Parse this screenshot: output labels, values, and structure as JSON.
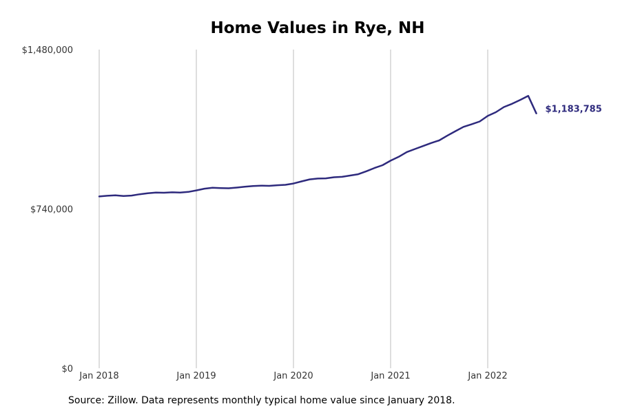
{
  "chart_data": {
    "type": "line",
    "title": "Home Values in Rye, NH",
    "xlabel": "",
    "ylabel": "",
    "ylim": [
      0,
      1480000
    ],
    "xlim": [
      "2018-01",
      "2022-11"
    ],
    "y_ticks": [
      {
        "value": 0,
        "label": "$0"
      },
      {
        "value": 740000,
        "label": "$740,000"
      },
      {
        "value": 1480000,
        "label": "$1,480,000"
      }
    ],
    "x_ticks": [
      {
        "value": "2018-01",
        "label": "Jan 2018"
      },
      {
        "value": "2019-01",
        "label": "Jan 2019"
      },
      {
        "value": "2020-01",
        "label": "Jan 2020"
      },
      {
        "value": "2021-01",
        "label": "Jan 2021"
      },
      {
        "value": "2022-01",
        "label": "Jan 2022"
      }
    ],
    "grid": "vertical at x ticks",
    "legend": "none",
    "line_color": "#2e2a7d",
    "x": [
      "2018-01",
      "2018-02",
      "2018-03",
      "2018-04",
      "2018-05",
      "2018-06",
      "2018-07",
      "2018-08",
      "2018-09",
      "2018-10",
      "2018-11",
      "2018-12",
      "2019-01",
      "2019-02",
      "2019-03",
      "2019-04",
      "2019-05",
      "2019-06",
      "2019-07",
      "2019-08",
      "2019-09",
      "2019-10",
      "2019-11",
      "2019-12",
      "2020-01",
      "2020-02",
      "2020-03",
      "2020-04",
      "2020-05",
      "2020-06",
      "2020-07",
      "2020-08",
      "2020-09",
      "2020-10",
      "2020-11",
      "2020-12",
      "2021-01",
      "2021-02",
      "2021-03",
      "2021-04",
      "2021-05",
      "2021-06",
      "2021-07",
      "2021-08",
      "2021-09",
      "2021-10",
      "2021-11",
      "2021-12",
      "2022-01",
      "2022-02",
      "2022-03",
      "2022-04",
      "2022-05",
      "2022-06",
      "2022-07"
    ],
    "values": [
      798000,
      801000,
      803000,
      800000,
      802000,
      808000,
      813000,
      816000,
      815000,
      817000,
      816000,
      819000,
      826000,
      834000,
      838000,
      837000,
      836000,
      839000,
      843000,
      846000,
      848000,
      847000,
      850000,
      852000,
      858000,
      868000,
      877000,
      881000,
      882000,
      887000,
      889000,
      895000,
      901000,
      915000,
      930000,
      943000,
      964000,
      982000,
      1004000,
      1018000,
      1032000,
      1046000,
      1058000,
      1080000,
      1101000,
      1121000,
      1133000,
      1146000,
      1172000,
      1189000,
      1213000,
      1228000,
      1246000,
      1265000,
      1183785
    ],
    "end_label": "$1,183,785"
  }
}
